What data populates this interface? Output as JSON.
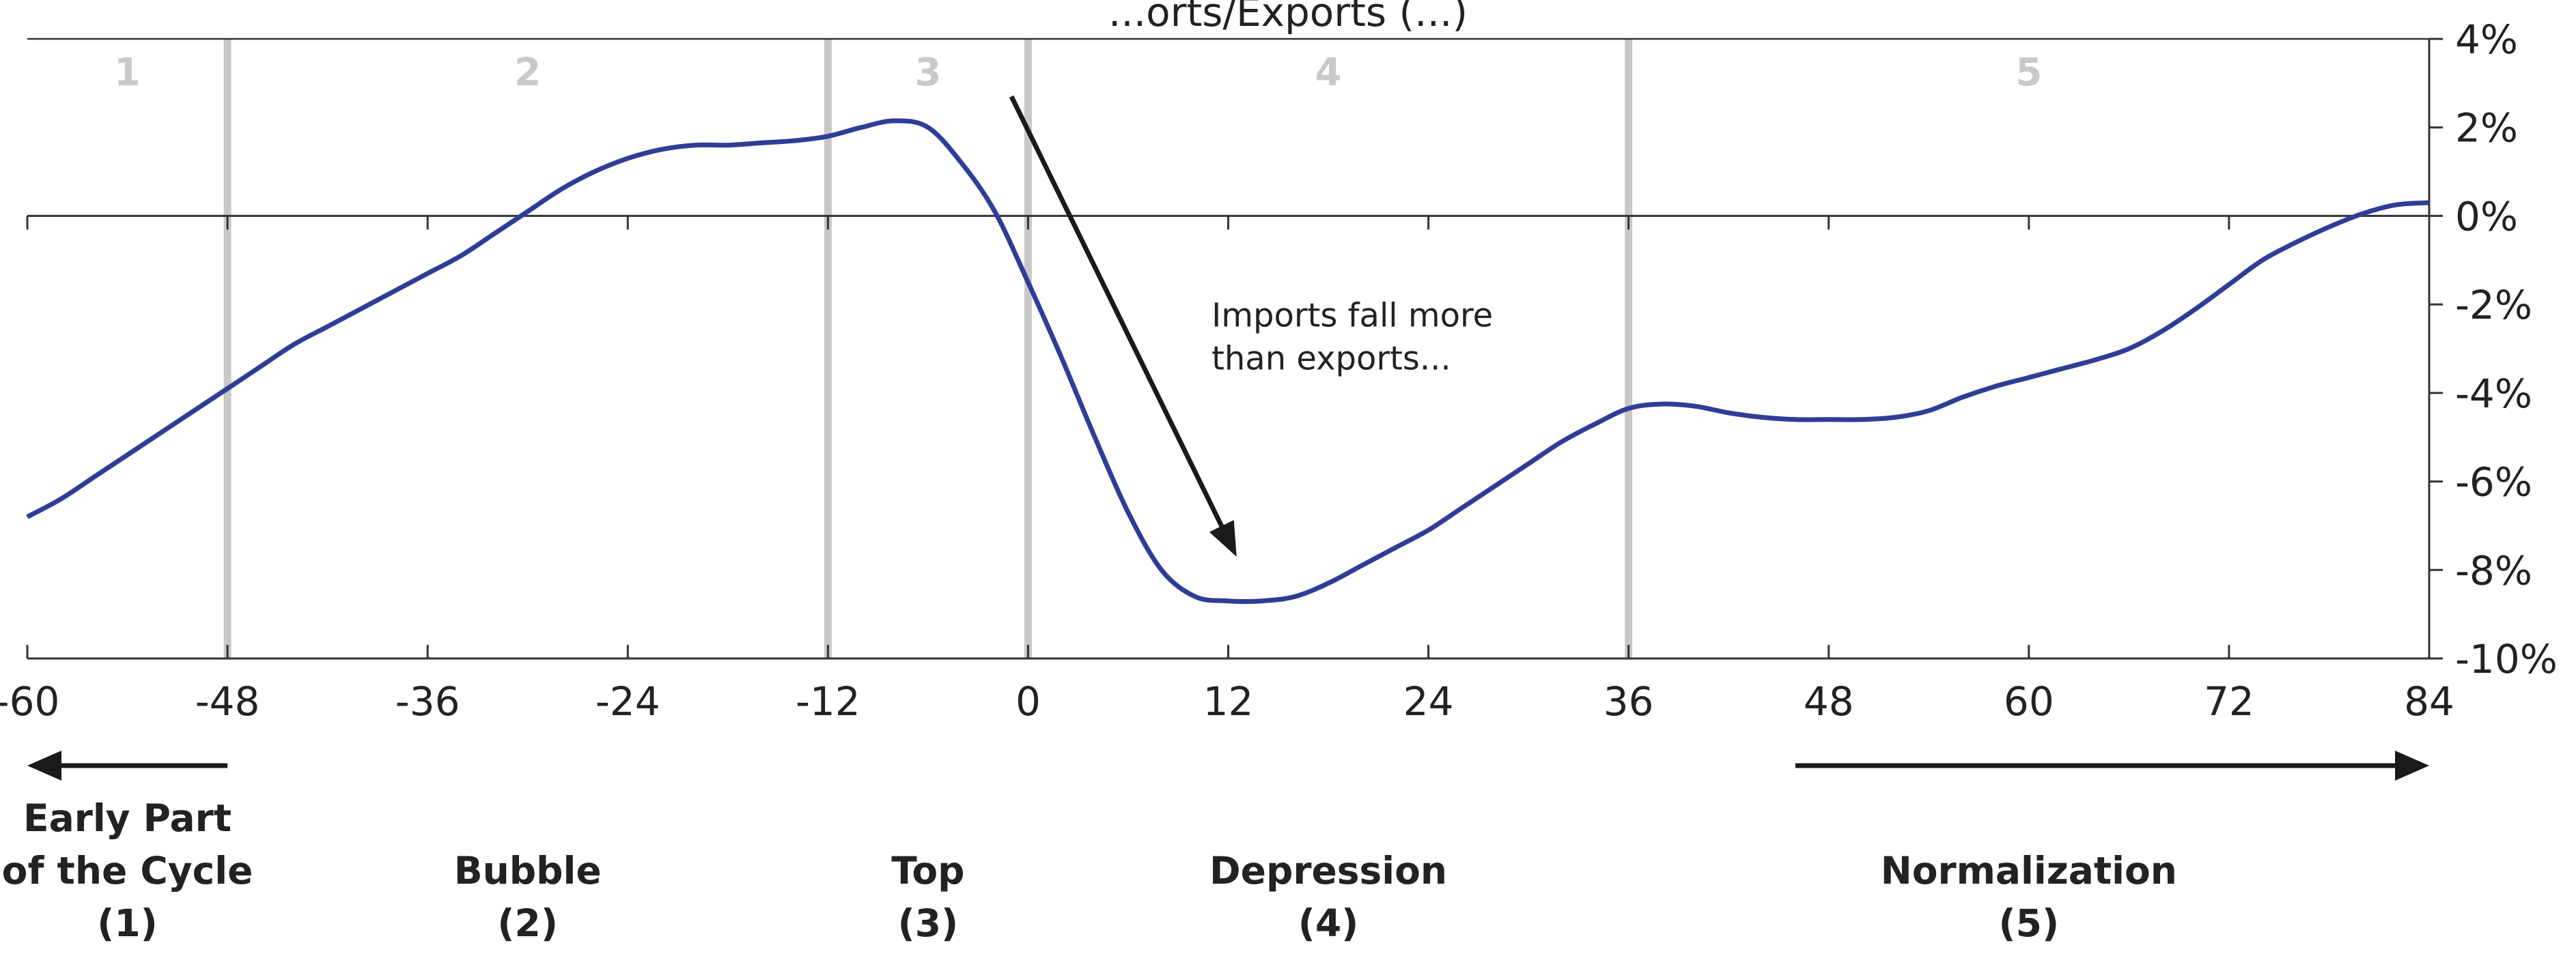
{
  "chart_data": {
    "type": "line",
    "title": "...orts/Exports (...)",
    "x": [
      -60,
      -58,
      -56,
      -54,
      -52,
      -50,
      -48,
      -46,
      -44,
      -42,
      -40,
      -38,
      -36,
      -34,
      -32,
      -30,
      -28,
      -26,
      -24,
      -22,
      -20,
      -18,
      -16,
      -14,
      -12,
      -10,
      -8,
      -6,
      -4,
      -2,
      0,
      2,
      4,
      6,
      8,
      10,
      12,
      14,
      16,
      18,
      20,
      22,
      24,
      26,
      28,
      30,
      32,
      34,
      36,
      38,
      40,
      42,
      44,
      46,
      48,
      50,
      52,
      54,
      56,
      58,
      60,
      62,
      64,
      66,
      68,
      70,
      72,
      74,
      76,
      78,
      80,
      82,
      84
    ],
    "series": [
      {
        "values": [
          -6.8,
          -6.4,
          -5.9,
          -5.4,
          -4.9,
          -4.4,
          -3.9,
          -3.4,
          -2.9,
          -2.5,
          -2.1,
          -1.7,
          -1.3,
          -0.9,
          -0.4,
          0.1,
          0.6,
          1.0,
          1.3,
          1.5,
          1.6,
          1.6,
          1.65,
          1.7,
          1.8,
          2.0,
          2.15,
          2.0,
          1.2,
          0.1,
          -1.5,
          -3.2,
          -5.0,
          -6.7,
          -8.0,
          -8.6,
          -8.7,
          -8.7,
          -8.6,
          -8.3,
          -7.9,
          -7.5,
          -7.1,
          -6.6,
          -6.1,
          -5.6,
          -5.1,
          -4.7,
          -4.35,
          -4.25,
          -4.3,
          -4.45,
          -4.55,
          -4.6,
          -4.6,
          -4.6,
          -4.55,
          -4.4,
          -4.1,
          -3.85,
          -3.65,
          -3.45,
          -3.25,
          -3.0,
          -2.6,
          -2.1,
          -1.55,
          -1.0,
          -0.6,
          -0.25,
          0.05,
          0.25,
          0.3
        ]
      }
    ],
    "xlim": [
      -60,
      84
    ],
    "ylim": [
      -10,
      4
    ],
    "x_ticks": [
      "-60",
      "-48",
      "-36",
      "-24",
      "-12",
      "0",
      "12",
      "24",
      "36",
      "48",
      "60",
      "72",
      "84"
    ],
    "y_ticks": [
      "4%",
      "2%",
      "0%",
      "-2%",
      "-4%",
      "-6%",
      "-8%",
      "-10%"
    ],
    "y_axis_side": "right",
    "phase_boundaries": [
      -48,
      -12,
      0,
      36
    ],
    "phase_numbers": [
      {
        "label": "1",
        "x": -54
      },
      {
        "label": "2",
        "x": -30
      },
      {
        "label": "3",
        "x": -6
      },
      {
        "label": "4",
        "x": 18
      },
      {
        "label": "5",
        "x": 60
      }
    ],
    "annotation": {
      "lines": [
        "Imports fall more",
        "than exports..."
      ],
      "text_x": 11,
      "text_y": -2.5,
      "arrow_from": [
        -1,
        2.7
      ],
      "arrow_to": [
        12.5,
        -7.7
      ]
    },
    "stages": [
      {
        "lines": [
          "Early Part",
          "of the Cycle",
          "(1)"
        ],
        "x": -54
      },
      {
        "lines": [
          "Bubble",
          "(2)"
        ],
        "x": -30
      },
      {
        "lines": [
          "Top",
          "(3)"
        ],
        "x": -6
      },
      {
        "lines": [
          "Depression",
          "(4)"
        ],
        "x": 18
      },
      {
        "lines": [
          "Normalization",
          "(5)"
        ],
        "x": 60
      }
    ],
    "timeline_arrows": [
      {
        "from": -48,
        "to": -60
      },
      {
        "from": 46,
        "to": 84
      }
    ],
    "line_color": "#2e3d95",
    "boundary_color": "#c8c8c8"
  }
}
